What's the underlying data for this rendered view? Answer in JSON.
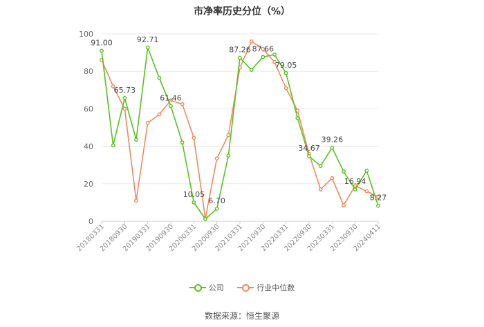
{
  "chart_data": {
    "type": "line",
    "title": "市净率历史分位（%）",
    "xlabel": "",
    "ylabel": "",
    "ylim": [
      0,
      100
    ],
    "yticks": [
      0,
      20,
      40,
      60,
      80,
      100
    ],
    "x_tick_labels": [
      "20180331",
      "20180930",
      "20190331",
      "20190930",
      "20200331",
      "20200930",
      "20210331",
      "20210930",
      "20220331",
      "20220930",
      "20230331",
      "20230930",
      "20240411"
    ],
    "series": [
      {
        "name": "公司",
        "color": "#52c41a",
        "values": [
          91.0,
          40.5,
          65.73,
          43.5,
          92.71,
          76.5,
          61.46,
          42.0,
          10.05,
          1.2,
          6.7,
          35.0,
          87.26,
          80.8,
          87.66,
          89.0,
          79.05,
          55.0,
          34.67,
          29.5,
          39.26,
          26.5,
          16.94,
          27.0,
          8.27
        ]
      },
      {
        "name": "行业中位数",
        "color": "#f4875a",
        "values": [
          86.0,
          72.0,
          60.0,
          11.0,
          52.5,
          57.0,
          64.5,
          62.5,
          44.5,
          1.5,
          33.5,
          46.0,
          82.0,
          96.0,
          92.0,
          85.0,
          71.0,
          59.0,
          36.0,
          17.0,
          23.0,
          8.5,
          19.0,
          16.0,
          13.0
        ]
      }
    ],
    "data_labels": [
      {
        "index": 0,
        "text": "91.00"
      },
      {
        "index": 2,
        "text": "65.73"
      },
      {
        "index": 4,
        "text": "92.71"
      },
      {
        "index": 6,
        "text": "61.46"
      },
      {
        "index": 8,
        "text": "10.05"
      },
      {
        "index": 10,
        "text": "6.70"
      },
      {
        "index": 12,
        "text": "87.26"
      },
      {
        "index": 14,
        "text": "87.66"
      },
      {
        "index": 16,
        "text": "79.05"
      },
      {
        "index": 18,
        "text": "34.67"
      },
      {
        "index": 20,
        "text": "39.26"
      },
      {
        "index": 22,
        "text": "16.94"
      },
      {
        "index": 24,
        "text": "8.27"
      }
    ],
    "legend_position": "bottom",
    "grid": true
  },
  "source": "数据来源：恒生聚源"
}
